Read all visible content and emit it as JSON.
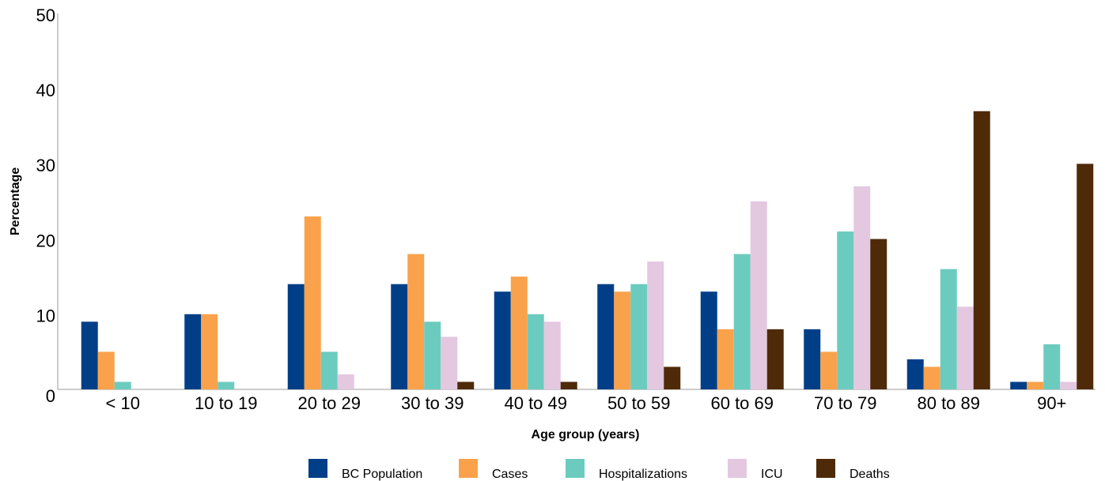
{
  "chart_data": {
    "type": "bar",
    "x_label": "Age group (years)",
    "y_label": "Percentage",
    "categories": [
      "< 10",
      "10 to 19",
      "20 to 29",
      "30 to 39",
      "40 to 49",
      "50 to 59",
      "60 to 69",
      "70 to 79",
      "80 to 89",
      "90+"
    ],
    "series": [
      {
        "name": "BC Population",
        "color": "#003f87",
        "values": [
          9,
          10,
          14,
          14,
          13,
          14,
          13,
          8,
          4,
          1
        ]
      },
      {
        "name": "Cases",
        "color": "#f9a24b",
        "values": [
          5,
          10,
          23,
          18,
          15,
          13,
          8,
          5,
          3,
          1
        ]
      },
      {
        "name": "Hospitalizations",
        "color": "#6ccbbf",
        "values": [
          1,
          1,
          5,
          9,
          10,
          14,
          18,
          21,
          16,
          6
        ]
      },
      {
        "name": "ICU",
        "color": "#e3c8e0",
        "values": [
          0,
          0,
          2,
          7,
          9,
          17,
          25,
          27,
          11,
          1
        ]
      },
      {
        "name": "Deaths",
        "color": "#4f2a09",
        "values": [
          0,
          0,
          0,
          1,
          1,
          3,
          8,
          20,
          37,
          30
        ]
      }
    ],
    "ylim": [
      0,
      50
    ],
    "yticks": [
      0,
      10,
      20,
      30,
      40,
      50
    ],
    "grid": false
  }
}
